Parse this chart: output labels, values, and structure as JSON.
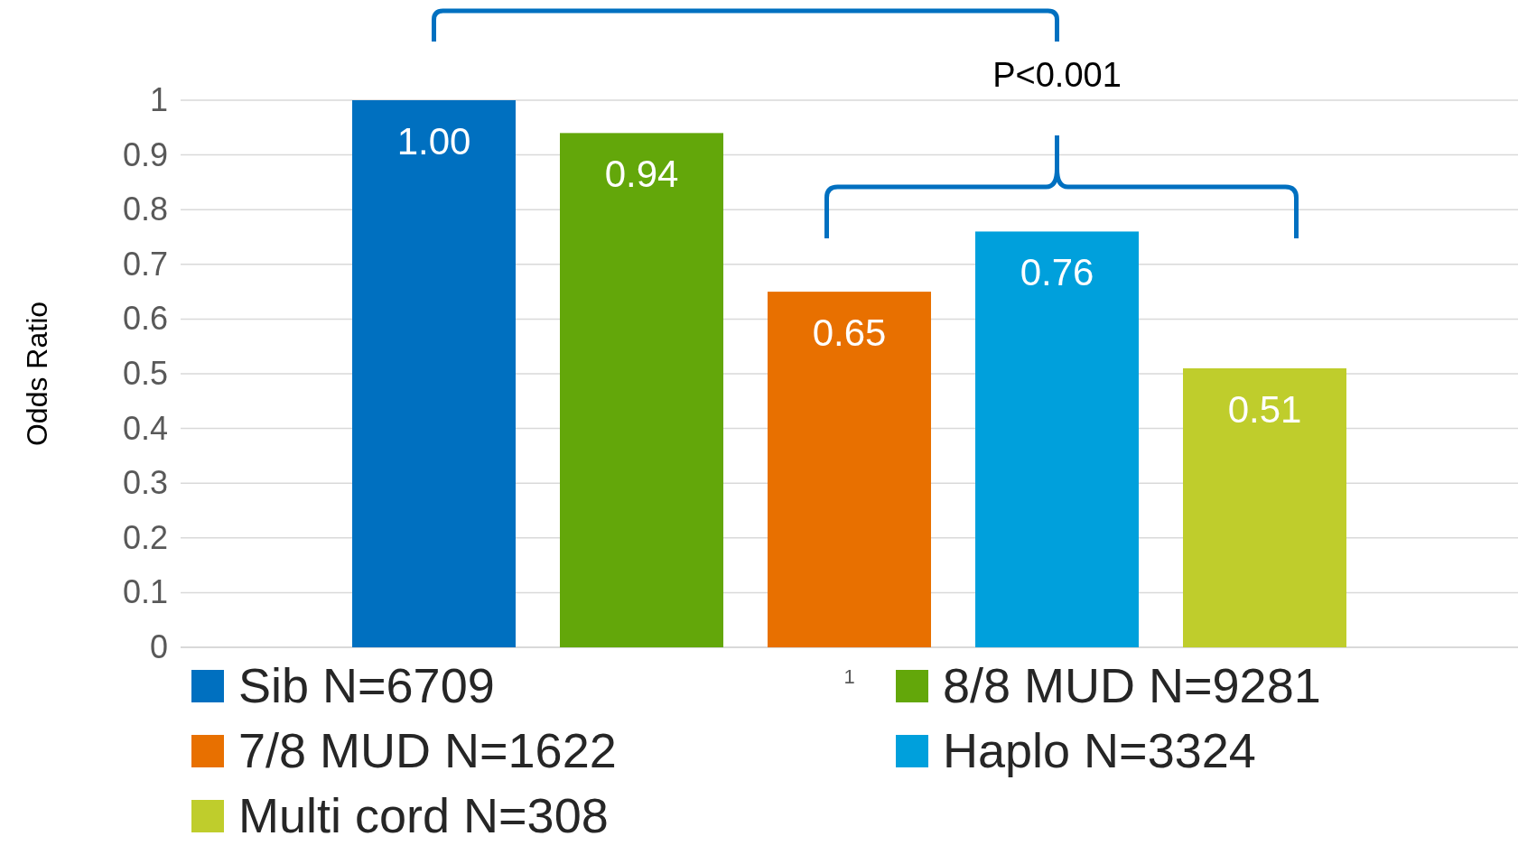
{
  "chart_data": {
    "type": "bar",
    "ylabel": "Odds Ratio",
    "categories": [
      "1"
    ],
    "series": [
      {
        "name": "Sib N=6709",
        "color": "#0070c0",
        "values": [
          1.0
        ],
        "value_labels": [
          "1.00"
        ]
      },
      {
        "name": "8/8 MUD N=9281",
        "color": "#63a70a",
        "values": [
          0.94
        ],
        "value_labels": [
          "0.94"
        ]
      },
      {
        "name": "7/8 MUD N=1622",
        "color": "#e87000",
        "values": [
          0.65
        ],
        "value_labels": [
          "0.65"
        ]
      },
      {
        "name": "Haplo N=3324",
        "color": "#00a0dc",
        "values": [
          0.76
        ],
        "value_labels": [
          "0.76"
        ]
      },
      {
        "name": "Multi cord N=308",
        "color": "#bfcd2c",
        "values": [
          0.51
        ],
        "value_labels": [
          "0.51"
        ]
      }
    ],
    "ylim": [
      0,
      1
    ],
    "yticks": [
      0,
      0.1,
      0.2,
      0.3,
      0.4,
      0.5,
      0.6,
      0.7,
      0.8,
      0.9,
      1
    ],
    "grid": "y",
    "legend": "bottom",
    "annotations": [
      "P<0.001"
    ]
  }
}
